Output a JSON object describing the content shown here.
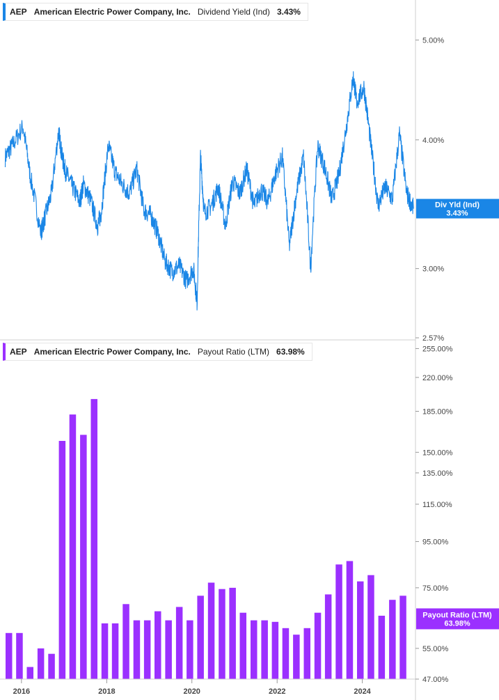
{
  "top_legend": {
    "ticker": "AEP",
    "company": "American Electric Power Company, Inc.",
    "metric": "Dividend Yield (Ind)",
    "value": "3.43%",
    "color": "#1a86e6"
  },
  "bottom_legend": {
    "ticker": "AEP",
    "company": "American Electric Power Company, Inc.",
    "metric": "Payout Ratio (LTM)",
    "value": "63.98%",
    "color": "#9b30ff"
  },
  "chart_data": [
    {
      "type": "line",
      "series": [
        {
          "name": "Dividend Yield (Ind)",
          "x": [
            "2015-08",
            "2015-10",
            "2016-01",
            "2016-03",
            "2016-06",
            "2016-07",
            "2016-09",
            "2016-11",
            "2016-12",
            "2017-01",
            "2017-03",
            "2017-05",
            "2017-06",
            "2017-08",
            "2017-10",
            "2017-11",
            "2018-01",
            "2018-03",
            "2018-05",
            "2018-07",
            "2018-09",
            "2018-11",
            "2019-01",
            "2019-03",
            "2019-05",
            "2019-07",
            "2019-09",
            "2019-11",
            "2020-01",
            "2020-02",
            "2020-03",
            "2020-04",
            "2020-06",
            "2020-08",
            "2020-10",
            "2020-12",
            "2021-02",
            "2021-04",
            "2021-06",
            "2021-08",
            "2021-10",
            "2021-12",
            "2022-02",
            "2022-04",
            "2022-06",
            "2022-08",
            "2022-10",
            "2022-12",
            "2023-02",
            "2023-04",
            "2023-06",
            "2023-08",
            "2023-10",
            "2023-11",
            "2024-01",
            "2024-03",
            "2024-05",
            "2024-07",
            "2024-09",
            "2024-11",
            "2025-01",
            "2025-03"
          ],
          "values": [
            3.85,
            3.95,
            4.12,
            3.7,
            3.25,
            3.35,
            3.55,
            4.08,
            3.85,
            3.72,
            3.6,
            3.48,
            3.62,
            3.5,
            3.3,
            3.4,
            3.95,
            3.72,
            3.62,
            3.55,
            3.75,
            3.42,
            3.38,
            3.25,
            3.05,
            2.98,
            3.02,
            2.92,
            3.0,
            2.78,
            3.85,
            3.4,
            3.45,
            3.6,
            3.3,
            3.65,
            3.55,
            3.75,
            3.45,
            3.58,
            3.48,
            3.7,
            3.85,
            3.15,
            3.55,
            3.85,
            3.0,
            3.95,
            3.75,
            3.5,
            3.7,
            4.1,
            4.6,
            4.35,
            4.5,
            3.95,
            3.45,
            3.6,
            3.5,
            4.05,
            3.55,
            3.43
          ]
        }
      ],
      "xlabel": "",
      "ylabel": "",
      "ylim": [
        2.57,
        5.4
      ],
      "y_scale": "log",
      "y_ticks": [
        5.0,
        4.0,
        3.0,
        2.57
      ],
      "y_tick_labels": [
        "5.00%",
        "4.00%",
        "3.00%",
        "2.57%"
      ],
      "last_value_label": "Div Yld (Ind)",
      "last_value_text": "3.43%",
      "color": "#1a86e6"
    },
    {
      "type": "bar",
      "x": [
        "2015-09",
        "2015-12",
        "2016-03",
        "2016-06",
        "2016-09",
        "2016-12",
        "2017-03",
        "2017-06",
        "2017-09",
        "2017-12",
        "2018-03",
        "2018-06",
        "2018-09",
        "2018-12",
        "2019-03",
        "2019-06",
        "2019-09",
        "2019-12",
        "2020-03",
        "2020-06",
        "2020-09",
        "2020-12",
        "2021-03",
        "2021-06",
        "2021-09",
        "2021-12",
        "2022-03",
        "2022-06",
        "2022-09",
        "2022-12",
        "2023-03",
        "2023-06",
        "2023-09",
        "2023-12",
        "2024-03",
        "2024-06",
        "2024-09",
        "2024-12"
      ],
      "series": [
        {
          "name": "Payout Ratio (LTM)",
          "values": [
            59.5,
            59.5,
            50.0,
            55.0,
            53.5,
            159.0,
            182.0,
            164.0,
            197.0,
            62.5,
            62.5,
            69.0,
            63.5,
            63.5,
            66.5,
            63.5,
            68.0,
            63.5,
            72.0,
            77.0,
            74.5,
            75.0,
            66.0,
            63.5,
            63.5,
            63.0,
            61.0,
            59.0,
            61.0,
            66.0,
            72.5,
            84.5,
            86.0,
            77.5,
            80.0,
            65.0,
            70.5,
            72.0
          ]
        }
      ],
      "extra_values_note_removed": true,
      "xlabel": "",
      "ylabel": "",
      "ylim": [
        47.0,
        260.0
      ],
      "y_scale": "log",
      "y_ticks": [
        255,
        220,
        185,
        150,
        135,
        115,
        95,
        75,
        55,
        47
      ],
      "y_tick_labels": [
        "255.00%",
        "220.00%",
        "185.00%",
        "150.00%",
        "135.00%",
        "115.00%",
        "95.00%",
        "75.00%",
        "55.00%",
        "47.00%"
      ],
      "x_tick_labels": [
        "2016",
        "2018",
        "2020",
        "2022",
        "2024"
      ],
      "last_value_label": "Payout Ratio (LTM)",
      "last_value_text": "63.98%",
      "color": "#9b30ff"
    }
  ]
}
